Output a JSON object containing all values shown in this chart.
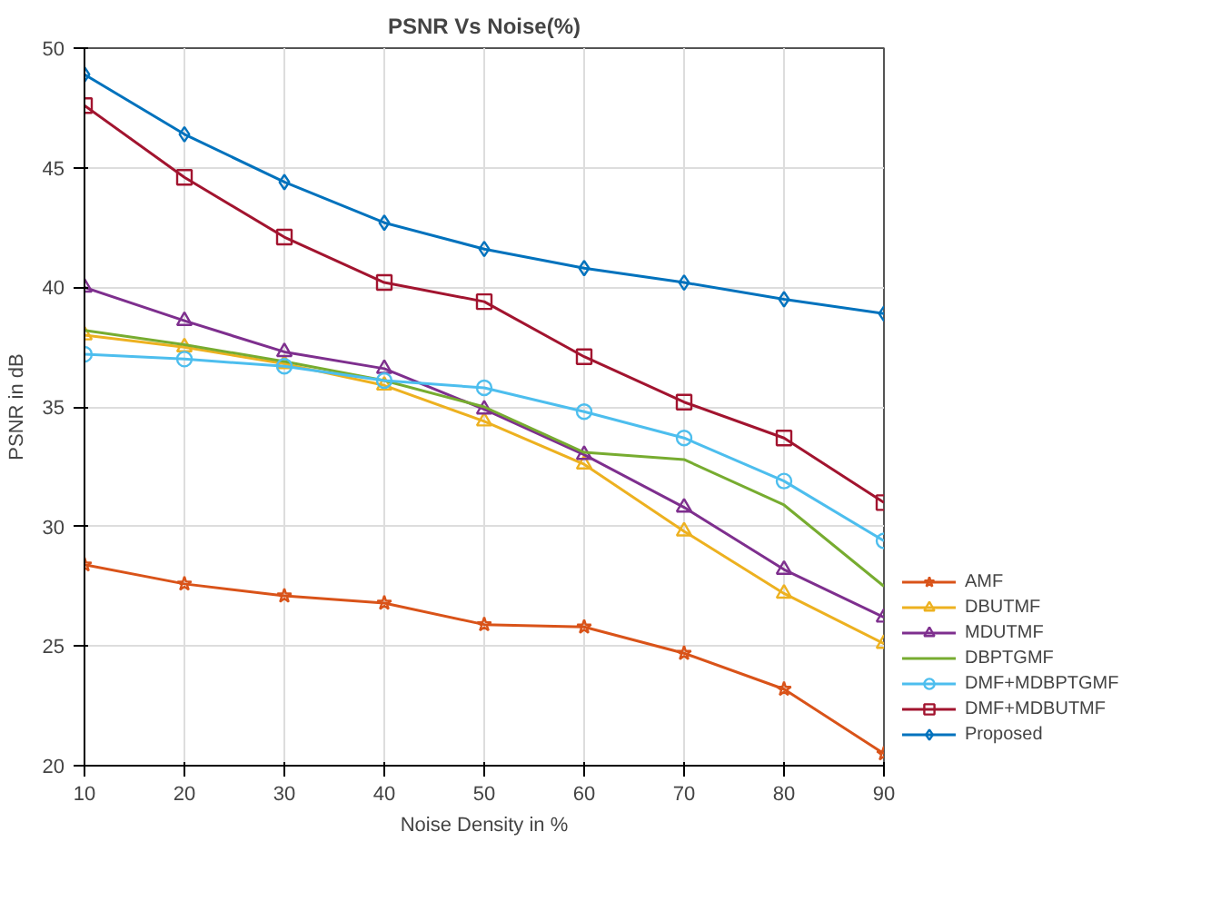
{
  "chart_data": {
    "type": "line",
    "title": "PSNR Vs Noise(%)",
    "xlabel": "Noise Density in %",
    "ylabel": "PSNR in dB",
    "x": [
      10,
      20,
      30,
      40,
      50,
      60,
      70,
      80,
      90
    ],
    "xlim": [
      10,
      90
    ],
    "xticks": [
      10,
      20,
      30,
      40,
      50,
      60,
      70,
      80,
      90
    ],
    "ylim": [
      20,
      50
    ],
    "yticks": [
      20,
      25,
      30,
      35,
      40,
      45,
      50
    ],
    "grid": true,
    "legend": "right",
    "line_style": "solid",
    "series": [
      {
        "name": "AMF",
        "color": "#d95319",
        "marker": "star",
        "values": [
          28.4,
          27.6,
          27.1,
          26.8,
          25.9,
          25.8,
          24.7,
          23.2,
          20.5
        ]
      },
      {
        "name": "DBUTMF",
        "color": "#edb120",
        "marker": "triangle",
        "values": [
          38.0,
          37.5,
          36.8,
          35.9,
          34.4,
          32.6,
          29.8,
          27.2,
          25.1
        ]
      },
      {
        "name": "MDUTMF",
        "color": "#7e2f8e",
        "marker": "triangle",
        "values": [
          40.0,
          38.6,
          37.3,
          36.6,
          34.9,
          33.0,
          30.8,
          28.2,
          26.2
        ]
      },
      {
        "name": "DBPTGMF",
        "color": "#77ac30",
        "marker": "none",
        "values": [
          38.2,
          37.6,
          36.9,
          36.1,
          35.0,
          33.1,
          32.8,
          30.9,
          27.5
        ]
      },
      {
        "name": "DMF+MDBPTGMF",
        "color": "#4dbeee",
        "marker": "circle",
        "values": [
          37.2,
          37.0,
          36.7,
          36.1,
          35.8,
          34.8,
          33.7,
          31.9,
          29.4
        ]
      },
      {
        "name": "DMF+MDBUTMF",
        "color": "#a2142f",
        "marker": "square",
        "values": [
          47.6,
          44.6,
          42.1,
          40.2,
          39.4,
          37.1,
          35.2,
          33.7,
          31.0
        ]
      },
      {
        "name": "Proposed",
        "color": "#0072bd",
        "marker": "diamond",
        "values": [
          48.9,
          46.4,
          44.4,
          42.7,
          41.6,
          40.8,
          40.2,
          39.5,
          38.9
        ]
      }
    ]
  }
}
